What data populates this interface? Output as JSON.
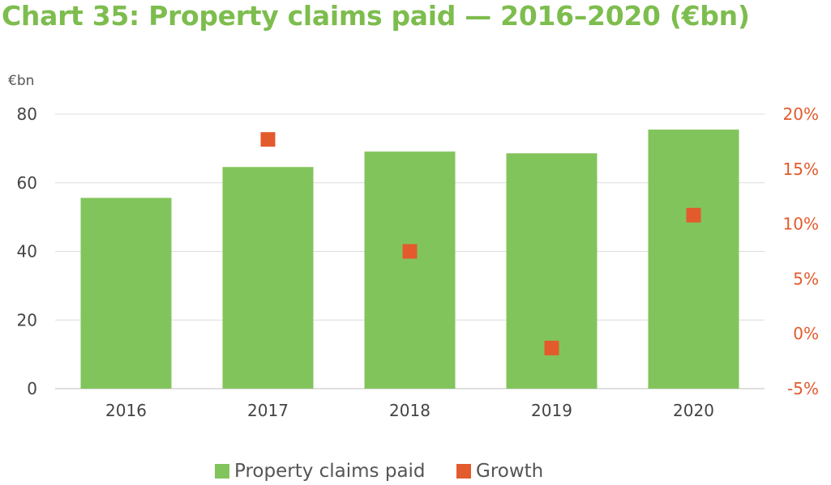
{
  "title": "Chart 35: Property claims paid — 2016–2020 (€bn)",
  "chart_data": {
    "type": "bar",
    "categories": [
      "2016",
      "2017",
      "2018",
      "2019",
      "2020"
    ],
    "series": [
      {
        "name": "Property claims paid",
        "type": "bar",
        "axis": "left",
        "color": "#82c45c",
        "values": [
          55.6,
          64.6,
          69.1,
          68.6,
          75.5
        ]
      },
      {
        "name": "Growth",
        "type": "scatter",
        "axis": "right",
        "color": "#e35a2d",
        "values": [
          null,
          17.7,
          7.5,
          -1.3,
          10.8
        ]
      }
    ],
    "left_axis": {
      "unit_label": "€bn",
      "ylim": [
        0,
        80
      ],
      "ticks": [
        "0",
        "20",
        "40",
        "60",
        "80"
      ],
      "tick_color": "#444444"
    },
    "right_axis": {
      "ylim": [
        -5,
        20
      ],
      "ticks": [
        "-5%",
        "0%",
        "5%",
        "10%",
        "15%",
        "20%"
      ],
      "tick_color": "#e35a2d"
    },
    "grid": true,
    "legend_position": "bottom"
  }
}
